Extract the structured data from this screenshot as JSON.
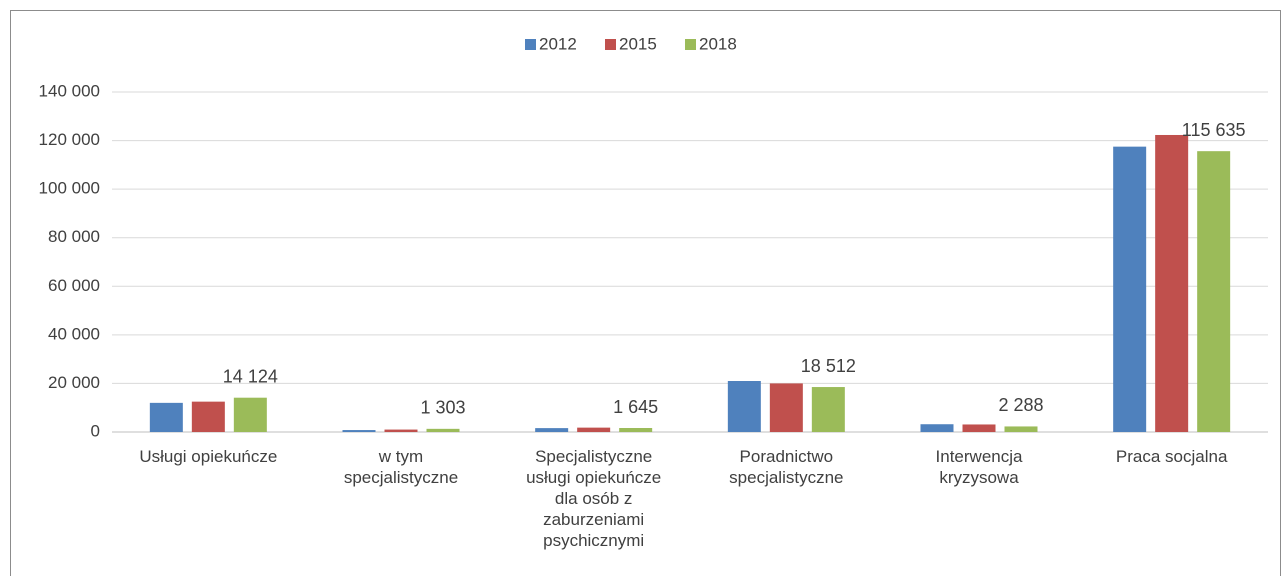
{
  "chart_data": {
    "type": "bar",
    "categories": [
      "Usługi opiekuńcze",
      "w tym specjalistyczne",
      "Specjalistyczne usługi opiekuńcze dla osób z zaburzeniami psychicznymi",
      "Poradnictwo specjalistyczne",
      "Interwencja kryzysowa",
      "Praca socjalna"
    ],
    "series": [
      {
        "name": "2012",
        "color": "#4f81bd",
        "values": [
          12000,
          800,
          1600,
          21000,
          3200,
          117500
        ]
      },
      {
        "name": "2015",
        "color": "#c0504d",
        "values": [
          12500,
          1000,
          1800,
          20000,
          3100,
          122300
        ]
      },
      {
        "name": "2018",
        "color": "#9bbb59",
        "values": [
          14124,
          1303,
          1645,
          18512,
          2288,
          115635
        ],
        "value_labels": [
          "14 124",
          "1 303",
          "1 645",
          "18 512",
          "2 288",
          "115 635"
        ]
      }
    ],
    "ylim": [
      0,
      140000
    ],
    "yticks": [
      0,
      {
        "value": 20000,
        "label": "20 000"
      },
      {
        "value": 40000,
        "label": "40 000"
      },
      {
        "value": 60000,
        "label": "60 000"
      },
      {
        "value": 80000,
        "label": "80 000"
      },
      {
        "value": 100000,
        "label": "100 000"
      },
      {
        "value": 120000,
        "label": "120 000"
      },
      {
        "value": 140000,
        "label": "140 000"
      }
    ],
    "grid": true,
    "legend": "top"
  }
}
